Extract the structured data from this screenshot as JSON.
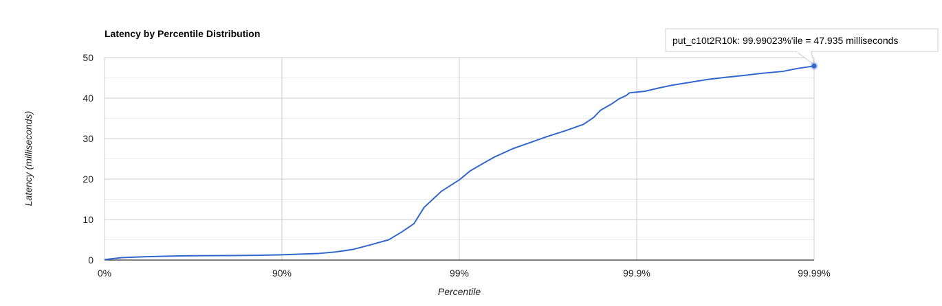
{
  "chart_data": {
    "type": "line",
    "title": "Latency by Percentile Distribution",
    "xlabel": "Percentile",
    "ylabel": "Latency (milliseconds)",
    "x_scale": "log-inverse-percentile",
    "x_ticks": [
      "0%",
      "90%",
      "99%",
      "99.9%",
      "99.99%"
    ],
    "y_ticks": [
      0,
      10,
      20,
      30,
      40,
      50
    ],
    "ylim": [
      0,
      50
    ],
    "grid": true,
    "colors": {
      "line": "#3366cc",
      "grid_major": "#cccccc",
      "grid_minor": "#ebebeb",
      "axis": "#333333"
    },
    "series": [
      {
        "name": "put_c10t2R10k",
        "x": [
          0,
          20,
          40,
          60,
          68.4,
          80,
          84.2,
          87.4,
          90,
          93.7,
          95,
          96.0,
          96.8,
          97.5,
          97.9,
          98.2,
          98.42,
          98.74,
          99.0,
          99.13,
          99.26,
          99.37,
          99.5,
          99.6,
          99.68,
          99.75,
          99.8,
          99.825,
          99.84,
          99.862,
          99.874,
          99.886,
          99.89,
          99.91,
          99.925,
          99.937,
          99.95,
          99.96,
          99.968,
          99.975,
          99.98,
          99.985,
          99.9875,
          99.99023
        ],
        "y": [
          0.1,
          0.6,
          0.8,
          1.0,
          1.05,
          1.1,
          1.15,
          1.2,
          1.3,
          1.6,
          2.0,
          2.6,
          3.7,
          5.0,
          7.0,
          9.0,
          13.0,
          17.0,
          19.8,
          22.0,
          23.8,
          25.5,
          27.5,
          29.0,
          30.5,
          32.0,
          33.5,
          35.2,
          37.0,
          38.6,
          39.8,
          40.7,
          41.3,
          41.7,
          42.5,
          43.2,
          43.9,
          44.6,
          45.1,
          45.6,
          46.1,
          46.6,
          47.3,
          47.935
        ]
      }
    ],
    "tooltip": {
      "text": "put_c10t2R10k: 99.99023%'ile = 47.935 milliseconds",
      "x": 99.99023,
      "y": 47.935
    }
  }
}
